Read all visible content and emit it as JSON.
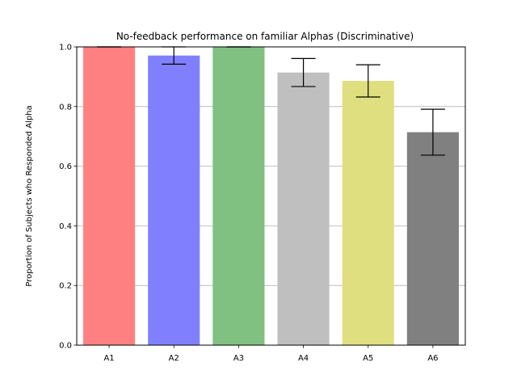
{
  "chart_data": {
    "type": "bar",
    "title": "No-feedback performance on familiar Alphas (Discriminative)",
    "xlabel": "",
    "ylabel": "Proportion of Subjects who Responded Alpha",
    "categories": [
      "A1",
      "A2",
      "A3",
      "A4",
      "A5",
      "A6"
    ],
    "values": [
      1.0,
      0.971,
      1.0,
      0.914,
      0.886,
      0.714
    ],
    "error": [
      0.0,
      0.029,
      0.0,
      0.047,
      0.054,
      0.077
    ],
    "colors": [
      "#ff8080",
      "#8080ff",
      "#80c080",
      "#bfbfbf",
      "#dfdf80",
      "#808080"
    ],
    "ylim": [
      0,
      1.0
    ],
    "yticks": [
      0.0,
      0.2,
      0.4,
      0.6,
      0.8,
      1.0
    ],
    "ytick_labels": [
      "0.0",
      "0.2",
      "0.4",
      "0.6",
      "0.8",
      "1.0"
    ],
    "grid": "horizontal",
    "legend": "none"
  }
}
